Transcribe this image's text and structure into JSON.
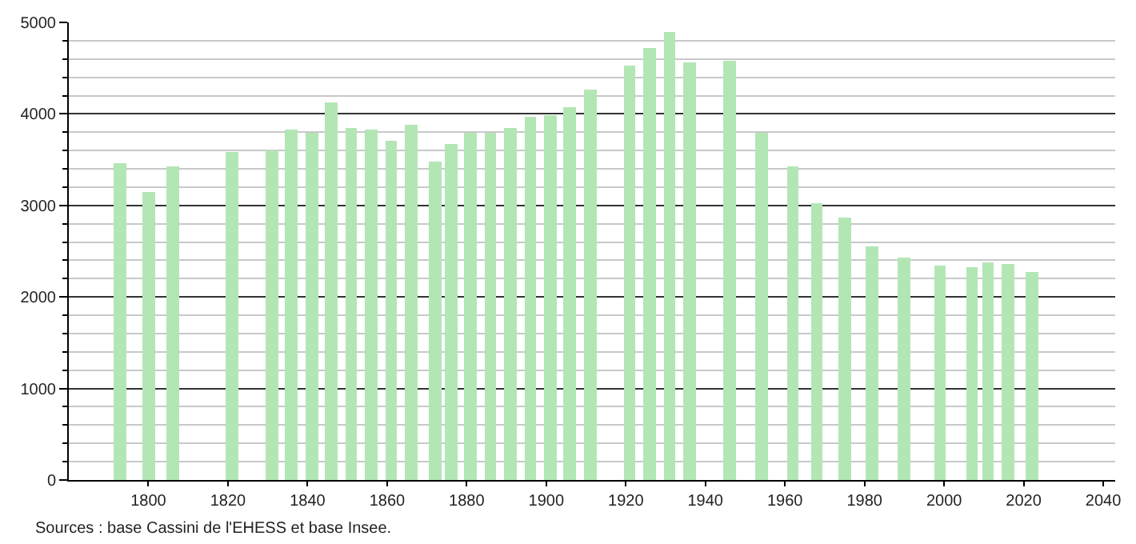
{
  "chart_data": {
    "type": "bar",
    "x": [
      1793,
      1800,
      1806,
      1821,
      1831,
      1836,
      1841,
      1846,
      1851,
      1856,
      1861,
      1866,
      1872,
      1876,
      1881,
      1886,
      1891,
      1896,
      1901,
      1906,
      1911,
      1921,
      1926,
      1931,
      1936,
      1946,
      1954,
      1962,
      1968,
      1975,
      1982,
      1990,
      1999,
      2006,
      2007,
      2011,
      2016,
      2021,
      2022
    ],
    "values": [
      3470,
      3150,
      3430,
      3580,
      3600,
      3830,
      3790,
      4120,
      3850,
      3830,
      3710,
      3880,
      3480,
      3670,
      3790,
      3790,
      3840,
      3960,
      3990,
      4070,
      4260,
      4530,
      4720,
      4900,
      4560,
      4580,
      3790,
      3430,
      3030,
      2860,
      2550,
      2430,
      2350,
      null,
      2330,
      2380,
      2360,
      null,
      2270
    ],
    "color": "#b3e6b5",
    "xlim": [
      1780,
      2043
    ],
    "xticks": [
      1800,
      1820,
      1840,
      1860,
      1880,
      1900,
      1920,
      1940,
      1960,
      1980,
      2000,
      2020,
      2040
    ],
    "ylim": [
      0,
      5000
    ],
    "yticks": [
      0,
      1000,
      2000,
      3000,
      4000,
      5000
    ],
    "grid": "y",
    "annotations": [
      "Sources : base Cassini de l'EHESS et base Insee."
    ]
  }
}
